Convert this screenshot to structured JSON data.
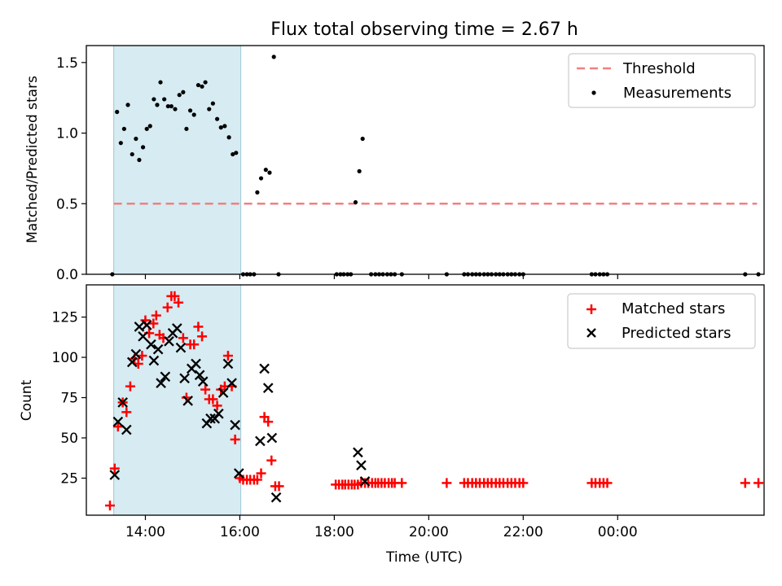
{
  "chart_data": [
    {
      "type": "scatter",
      "title": "Flux total observing time = 2.67 h",
      "xlabel": "",
      "ylabel": "Matched/Predicted stars",
      "xlim": [
        12.75,
        27.1
      ],
      "ylim": [
        0,
        1.62
      ],
      "x_ticks": [
        14,
        16,
        18,
        20,
        22,
        24
      ],
      "y_ticks": [
        0.0,
        0.5,
        1.0,
        1.5
      ],
      "y_tick_labels": [
        "0.0",
        "0.5",
        "1.0",
        "1.5"
      ],
      "shaded_span": [
        13.33,
        16.02
      ],
      "legend_position": "top-right",
      "threshold": {
        "name": "Threshold",
        "value": 0.5,
        "x_range": [
          13.33,
          26.95
        ],
        "color": "#f08080"
      },
      "series": [
        {
          "name": "Measurements",
          "color": "#000000",
          "points": [
            [
              13.3,
              0.0
            ],
            [
              13.4,
              1.15
            ],
            [
              13.48,
              0.93
            ],
            [
              13.55,
              1.03
            ],
            [
              13.63,
              1.2
            ],
            [
              13.72,
              0.85
            ],
            [
              13.8,
              0.96
            ],
            [
              13.87,
              0.81
            ],
            [
              13.95,
              0.9
            ],
            [
              14.03,
              1.03
            ],
            [
              14.1,
              1.05
            ],
            [
              14.18,
              1.24
            ],
            [
              14.25,
              1.2
            ],
            [
              14.32,
              1.36
            ],
            [
              14.4,
              1.24
            ],
            [
              14.48,
              1.19
            ],
            [
              14.55,
              1.19
            ],
            [
              14.63,
              1.17
            ],
            [
              14.72,
              1.27
            ],
            [
              14.8,
              1.29
            ],
            [
              14.87,
              1.03
            ],
            [
              14.95,
              1.16
            ],
            [
              15.03,
              1.13
            ],
            [
              15.12,
              1.34
            ],
            [
              15.2,
              1.33
            ],
            [
              15.27,
              1.36
            ],
            [
              15.35,
              1.17
            ],
            [
              15.43,
              1.21
            ],
            [
              15.52,
              1.1
            ],
            [
              15.6,
              1.04
            ],
            [
              15.68,
              1.05
            ],
            [
              15.77,
              0.97
            ],
            [
              15.85,
              0.85
            ],
            [
              15.92,
              0.86
            ],
            [
              16.07,
              0.0
            ],
            [
              16.15,
              0.0
            ],
            [
              16.22,
              0.0
            ],
            [
              16.3,
              0.0
            ],
            [
              16.37,
              0.58
            ],
            [
              16.45,
              0.68
            ],
            [
              16.55,
              0.74
            ],
            [
              16.63,
              0.72
            ],
            [
              16.72,
              1.54
            ],
            [
              16.82,
              0.0
            ],
            [
              18.05,
              0.0
            ],
            [
              18.13,
              0.0
            ],
            [
              18.2,
              0.0
            ],
            [
              18.28,
              0.0
            ],
            [
              18.35,
              0.0
            ],
            [
              18.45,
              0.51
            ],
            [
              18.53,
              0.73
            ],
            [
              18.6,
              0.96
            ],
            [
              18.78,
              0.0
            ],
            [
              18.87,
              0.0
            ],
            [
              18.95,
              0.0
            ],
            [
              19.03,
              0.0
            ],
            [
              19.12,
              0.0
            ],
            [
              19.2,
              0.0
            ],
            [
              19.28,
              0.0
            ],
            [
              19.43,
              0.0
            ],
            [
              20.38,
              0.0
            ],
            [
              20.75,
              0.0
            ],
            [
              20.83,
              0.0
            ],
            [
              20.92,
              0.0
            ],
            [
              21.0,
              0.0
            ],
            [
              21.08,
              0.0
            ],
            [
              21.17,
              0.0
            ],
            [
              21.25,
              0.0
            ],
            [
              21.33,
              0.0
            ],
            [
              21.42,
              0.0
            ],
            [
              21.5,
              0.0
            ],
            [
              21.58,
              0.0
            ],
            [
              21.67,
              0.0
            ],
            [
              21.75,
              0.0
            ],
            [
              21.83,
              0.0
            ],
            [
              21.92,
              0.0
            ],
            [
              22.0,
              0.0
            ],
            [
              23.45,
              0.0
            ],
            [
              23.53,
              0.0
            ],
            [
              23.62,
              0.0
            ],
            [
              23.7,
              0.0
            ],
            [
              23.78,
              0.0
            ],
            [
              26.7,
              0.0
            ],
            [
              26.98,
              0.0
            ]
          ]
        }
      ]
    },
    {
      "type": "scatter",
      "title": "",
      "xlabel": "Time (UTC)",
      "ylabel": "Count",
      "xlim": [
        12.75,
        27.1
      ],
      "ylim": [
        2,
        145
      ],
      "x_ticks": [
        14,
        16,
        18,
        20,
        22,
        24
      ],
      "x_tick_labels": [
        "14:00",
        "16:00",
        "18:00",
        "20:00",
        "22:00",
        "00:00"
      ],
      "y_ticks": [
        25,
        50,
        75,
        100,
        125
      ],
      "y_tick_labels": [
        "25",
        "50",
        "75",
        "100",
        "125"
      ],
      "shaded_span": [
        13.33,
        16.02
      ],
      "legend_position": "top-right",
      "series": [
        {
          "name": "Matched stars",
          "marker": "plus",
          "color": "#ff0000",
          "points": [
            [
              13.25,
              8
            ],
            [
              13.35,
              31
            ],
            [
              13.42,
              57
            ],
            [
              13.52,
              72
            ],
            [
              13.6,
              66
            ],
            [
              13.68,
              82
            ],
            [
              13.77,
              99
            ],
            [
              13.85,
              96
            ],
            [
              13.93,
              101
            ],
            [
              14.0,
              123
            ],
            [
              14.08,
              115
            ],
            [
              14.17,
              121
            ],
            [
              14.23,
              126
            ],
            [
              14.3,
              114
            ],
            [
              14.38,
              112
            ],
            [
              14.47,
              131
            ],
            [
              14.55,
              138
            ],
            [
              14.62,
              138
            ],
            [
              14.7,
              134
            ],
            [
              14.8,
              112
            ],
            [
              14.87,
              75
            ],
            [
              14.95,
              108
            ],
            [
              15.03,
              108
            ],
            [
              15.12,
              119
            ],
            [
              15.2,
              113
            ],
            [
              15.27,
              80
            ],
            [
              15.35,
              74
            ],
            [
              15.43,
              74
            ],
            [
              15.52,
              70
            ],
            [
              15.6,
              80
            ],
            [
              15.68,
              82
            ],
            [
              15.75,
              101
            ],
            [
              15.83,
              82
            ],
            [
              15.9,
              49
            ],
            [
              16.0,
              25
            ],
            [
              16.07,
              24
            ],
            [
              16.15,
              24
            ],
            [
              16.22,
              24
            ],
            [
              16.3,
              24
            ],
            [
              16.37,
              24
            ],
            [
              16.45,
              28
            ],
            [
              16.52,
              63
            ],
            [
              16.6,
              60
            ],
            [
              16.67,
              36
            ],
            [
              16.75,
              20
            ],
            [
              16.83,
              20
            ],
            [
              18.03,
              21
            ],
            [
              18.1,
              21
            ],
            [
              18.17,
              21
            ],
            [
              18.23,
              21
            ],
            [
              18.3,
              21
            ],
            [
              18.37,
              21
            ],
            [
              18.43,
              21
            ],
            [
              18.5,
              21
            ],
            [
              18.57,
              22
            ],
            [
              18.65,
              22
            ],
            [
              18.72,
              22
            ],
            [
              18.8,
              22
            ],
            [
              18.87,
              22
            ],
            [
              18.93,
              22
            ],
            [
              19.0,
              22
            ],
            [
              19.07,
              22
            ],
            [
              19.15,
              22
            ],
            [
              19.22,
              22
            ],
            [
              19.28,
              22
            ],
            [
              19.43,
              22
            ],
            [
              20.38,
              22
            ],
            [
              20.75,
              22
            ],
            [
              20.83,
              22
            ],
            [
              20.92,
              22
            ],
            [
              21.0,
              22
            ],
            [
              21.08,
              22
            ],
            [
              21.17,
              22
            ],
            [
              21.25,
              22
            ],
            [
              21.33,
              22
            ],
            [
              21.42,
              22
            ],
            [
              21.5,
              22
            ],
            [
              21.58,
              22
            ],
            [
              21.67,
              22
            ],
            [
              21.75,
              22
            ],
            [
              21.83,
              22
            ],
            [
              21.92,
              22
            ],
            [
              22.0,
              22
            ],
            [
              23.45,
              22
            ],
            [
              23.53,
              22
            ],
            [
              23.62,
              22
            ],
            [
              23.7,
              22
            ],
            [
              23.78,
              22
            ],
            [
              26.7,
              22
            ],
            [
              26.98,
              22
            ]
          ]
        },
        {
          "name": "Predicted stars",
          "marker": "x",
          "color": "#000000",
          "points": [
            [
              13.35,
              27
            ],
            [
              13.42,
              60
            ],
            [
              13.52,
              72
            ],
            [
              13.6,
              55
            ],
            [
              13.72,
              97
            ],
            [
              13.8,
              102
            ],
            [
              13.87,
              119
            ],
            [
              13.95,
              113
            ],
            [
              14.03,
              120
            ],
            [
              14.12,
              108
            ],
            [
              14.18,
              98
            ],
            [
              14.27,
              105
            ],
            [
              14.33,
              84
            ],
            [
              14.42,
              88
            ],
            [
              14.5,
              110
            ],
            [
              14.58,
              115
            ],
            [
              14.67,
              118
            ],
            [
              14.75,
              106
            ],
            [
              14.83,
              87
            ],
            [
              14.9,
              73
            ],
            [
              14.98,
              93
            ],
            [
              15.07,
              96
            ],
            [
              15.15,
              89
            ],
            [
              15.22,
              85
            ],
            [
              15.3,
              59
            ],
            [
              15.38,
              62
            ],
            [
              15.47,
              62
            ],
            [
              15.55,
              65
            ],
            [
              15.65,
              78
            ],
            [
              15.75,
              96
            ],
            [
              15.83,
              84
            ],
            [
              15.9,
              58
            ],
            [
              15.98,
              28
            ],
            [
              16.43,
              48
            ],
            [
              16.52,
              93
            ],
            [
              16.6,
              81
            ],
            [
              16.68,
              50
            ],
            [
              16.77,
              13
            ],
            [
              18.5,
              41
            ],
            [
              18.57,
              33
            ],
            [
              18.65,
              23
            ]
          ]
        }
      ]
    }
  ]
}
